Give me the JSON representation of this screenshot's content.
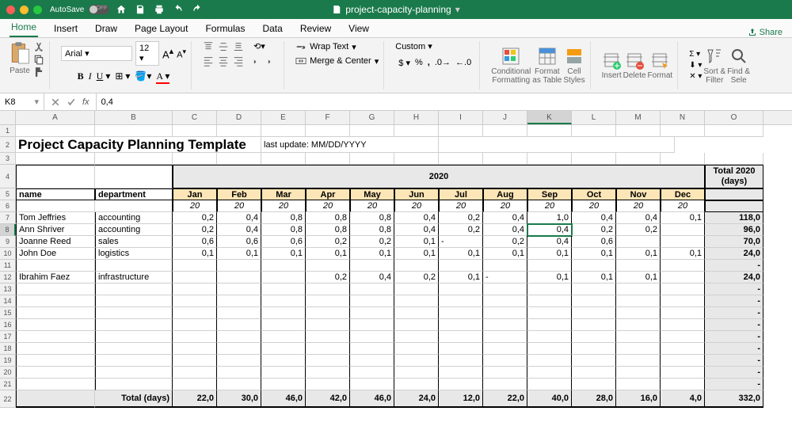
{
  "titlebar": {
    "autosave_label": "AutoSave",
    "autosave_state": "OFF",
    "doc_title": "project-capacity-planning"
  },
  "tabs": {
    "items": [
      "Home",
      "Insert",
      "Draw",
      "Page Layout",
      "Formulas",
      "Data",
      "Review",
      "View"
    ],
    "active": 0,
    "share": "Share"
  },
  "ribbon": {
    "paste": "Paste",
    "font_name": "Arial",
    "font_size": "12",
    "wrap": "Wrap Text",
    "merge": "Merge & Center",
    "number_format": "Custom",
    "cond_fmt": "Conditional\nFormatting",
    "fmt_table": "Format\nas Table",
    "cell_styles": "Cell\nStyles",
    "insert": "Insert",
    "delete": "Delete",
    "format": "Format",
    "sort": "Sort &\nFilter",
    "find": "Find &\nSele"
  },
  "fbar": {
    "namebox": "K8",
    "formula": "0,4"
  },
  "cols": [
    "",
    "A",
    "B",
    "C",
    "D",
    "E",
    "F",
    "G",
    "H",
    "I",
    "J",
    "K",
    "L",
    "M",
    "N",
    "O"
  ],
  "spreadsheet": {
    "title": "Project Capacity Planning Template",
    "subtitle": "last update: MM/DD/YYYY",
    "year": "2020",
    "total_hdr1": "Total 2020",
    "total_hdr2": "(days)",
    "name_hdr": "name",
    "dept_hdr": "department",
    "months": [
      "Jan",
      "Feb",
      "Mar",
      "Apr",
      "May",
      "Jun",
      "Jul",
      "Aug",
      "Sep",
      "Oct",
      "Nov",
      "Dec"
    ],
    "days_row": [
      "20",
      "20",
      "20",
      "20",
      "20",
      "20",
      "20",
      "20",
      "20",
      "20",
      "20",
      "20"
    ],
    "rows": [
      {
        "n": "Tom Jeffries",
        "d": "accounting",
        "v": [
          "0,2",
          "0,4",
          "0,8",
          "0,8",
          "0,8",
          "0,4",
          "0,2",
          "0,4",
          "1,0",
          "0,4",
          "0,4",
          "0,1"
        ],
        "t": "118,0"
      },
      {
        "n": "Ann Shriver",
        "d": "accounting",
        "v": [
          "0,2",
          "0,4",
          "0,8",
          "0,8",
          "0,8",
          "0,4",
          "0,2",
          "0,4",
          "0,4",
          "0,2",
          "0,2",
          ""
        ],
        "t": "96,0"
      },
      {
        "n": "Joanne Reed",
        "d": "sales",
        "v": [
          "0,6",
          "0,6",
          "0,6",
          "0,2",
          "0,2",
          "0,1",
          "-",
          "0,2",
          "0,4",
          "0,6",
          "",
          ""
        ],
        "t": "70,0"
      },
      {
        "n": "John Doe",
        "d": "logistics",
        "v": [
          "0,1",
          "0,1",
          "0,1",
          "0,1",
          "0,1",
          "0,1",
          "0,1",
          "0,1",
          "0,1",
          "0,1",
          "0,1",
          "0,1"
        ],
        "t": "24,0"
      },
      {
        "n": "",
        "d": "",
        "v": [
          "",
          "",
          "",
          "",
          "",
          "",
          "",
          "",
          "",
          "",
          "",
          ""
        ],
        "t": "-"
      },
      {
        "n": "Ibrahim Faez",
        "d": "infrastructure",
        "v": [
          "",
          "",
          "",
          "0,2",
          "0,4",
          "0,2",
          "0,1",
          "-",
          "0,1",
          "0,1",
          "0,1",
          ""
        ],
        "t": "24,0"
      },
      {
        "n": "",
        "d": "",
        "v": [
          "",
          "",
          "",
          "",
          "",
          "",
          "",
          "",
          "",
          "",
          "",
          ""
        ],
        "t": "-"
      },
      {
        "n": "",
        "d": "",
        "v": [
          "",
          "",
          "",
          "",
          "",
          "",
          "",
          "",
          "",
          "",
          "",
          ""
        ],
        "t": "-"
      },
      {
        "n": "",
        "d": "",
        "v": [
          "",
          "",
          "",
          "",
          "",
          "",
          "",
          "",
          "",
          "",
          "",
          ""
        ],
        "t": "-"
      },
      {
        "n": "",
        "d": "",
        "v": [
          "",
          "",
          "",
          "",
          "",
          "",
          "",
          "",
          "",
          "",
          "",
          ""
        ],
        "t": "-"
      },
      {
        "n": "",
        "d": "",
        "v": [
          "",
          "",
          "",
          "",
          "",
          "",
          "",
          "",
          "",
          "",
          "",
          ""
        ],
        "t": "-"
      },
      {
        "n": "",
        "d": "",
        "v": [
          "",
          "",
          "",
          "",
          "",
          "",
          "",
          "",
          "",
          "",
          "",
          ""
        ],
        "t": "-"
      },
      {
        "n": "",
        "d": "",
        "v": [
          "",
          "",
          "",
          "",
          "",
          "",
          "",
          "",
          "",
          "",
          "",
          ""
        ],
        "t": "-"
      },
      {
        "n": "",
        "d": "",
        "v": [
          "",
          "",
          "",
          "",
          "",
          "",
          "",
          "",
          "",
          "",
          "",
          ""
        ],
        "t": "-"
      },
      {
        "n": "",
        "d": "",
        "v": [
          "",
          "",
          "",
          "",
          "",
          "",
          "",
          "",
          "",
          "",
          "",
          ""
        ],
        "t": "-"
      }
    ],
    "total_label": "Total (days)",
    "totals": [
      "22,0",
      "30,0",
      "46,0",
      "42,0",
      "46,0",
      "24,0",
      "12,0",
      "22,0",
      "40,0",
      "28,0",
      "16,0",
      "4,0"
    ],
    "grand_total": "332,0"
  },
  "active": {
    "row": 8,
    "col": "K"
  }
}
